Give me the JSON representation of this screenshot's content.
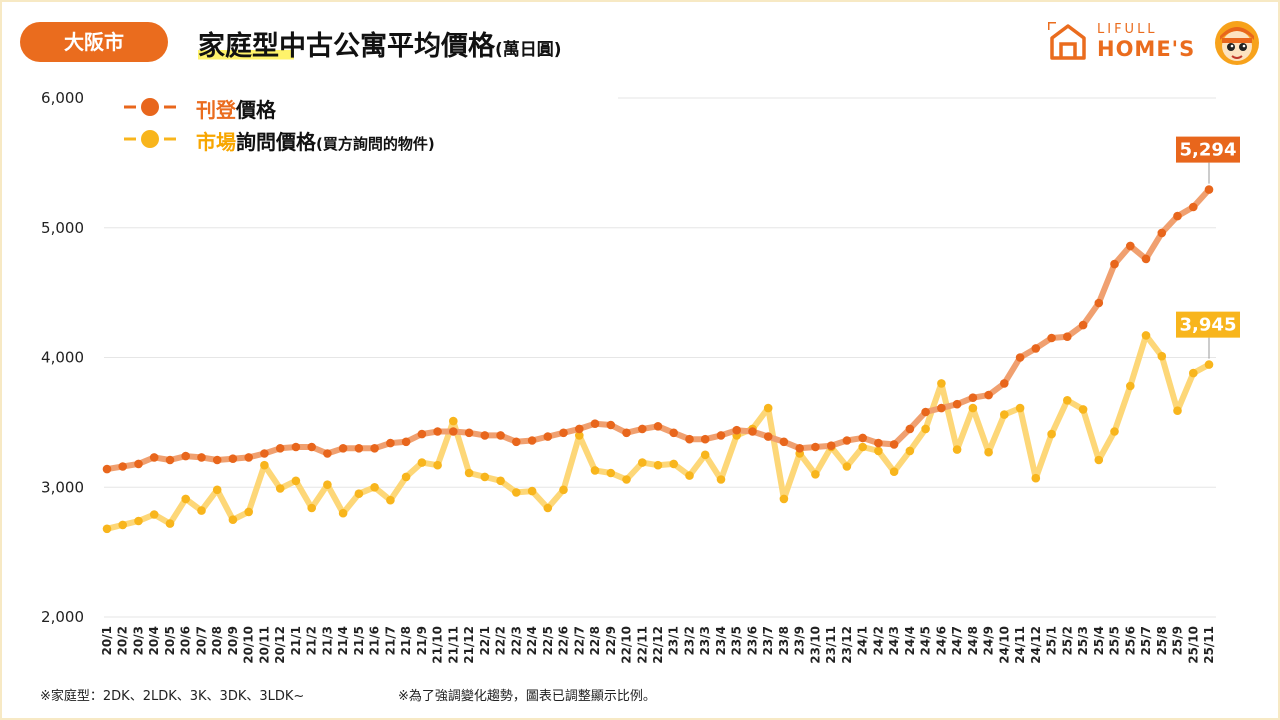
{
  "header": {
    "region": "大阪市",
    "title": "家庭型中古公寓平均價格",
    "title_unit": "(萬日圓)"
  },
  "logo": {
    "line1": "LIFULL",
    "line2": "HOME'S"
  },
  "legend": {
    "listing": {
      "hl": "刊登",
      "rest": "價格"
    },
    "inquiry": {
      "hl": "市場",
      "rest": "詢問價格",
      "small": "(買方詢問的物件)"
    }
  },
  "footnotes": {
    "left": "※家庭型：2DK、2LDK、3K、3DK、3LDK~",
    "right": "※為了強調變化趨勢，圖表已調整顯示比例。"
  },
  "colors": {
    "accent": "#ea6c1e",
    "listing_line": "#f0a070",
    "listing_dot": "#e8661c",
    "inquiry_line": "#fdd778",
    "inquiry_dot": "#f8b51c",
    "grid": "#e6e6e6",
    "label_listing_bg": "#e8661c",
    "label_inquiry_bg": "#f8b51c"
  },
  "chart_data": {
    "type": "line",
    "ylim": [
      2000,
      6000
    ],
    "yticks": [
      "2,000",
      "3,000",
      "4,000",
      "5,000",
      "6,000"
    ],
    "ytick_values": [
      2000,
      3000,
      4000,
      5000,
      6000
    ],
    "grid": true,
    "legend_position": "top-left",
    "x": [
      "20/1",
      "20/2",
      "20/3",
      "20/4",
      "20/5",
      "20/6",
      "20/7",
      "20/8",
      "20/9",
      "20/10",
      "20/11",
      "20/12",
      "21/1",
      "21/2",
      "21/3",
      "21/4",
      "21/5",
      "21/6",
      "21/7",
      "21/8",
      "21/9",
      "21/10",
      "21/11",
      "21/12",
      "22/1",
      "22/2",
      "22/3",
      "22/4",
      "22/5",
      "22/6",
      "22/7",
      "22/8",
      "22/9",
      "22/10",
      "22/11",
      "22/12",
      "23/1",
      "23/2",
      "23/3",
      "23/4",
      "23/5",
      "23/6",
      "23/7",
      "23/8",
      "23/9",
      "23/10",
      "23/11",
      "23/12",
      "24/1",
      "24/2",
      "24/3",
      "24/4",
      "24/5",
      "24/6",
      "24/7",
      "24/8",
      "24/9",
      "24/10",
      "24/11",
      "24/12",
      "25/1",
      "25/2",
      "25/3",
      "25/4",
      "25/5",
      "25/6",
      "25/7",
      "25/8",
      "25/9",
      "25/10",
      "25/11"
    ],
    "series": [
      {
        "name": "刊登價格",
        "values": [
          3140,
          3160,
          3180,
          3230,
          3210,
          3240,
          3230,
          3210,
          3220,
          3230,
          3260,
          3300,
          3310,
          3310,
          3260,
          3300,
          3300,
          3300,
          3340,
          3350,
          3410,
          3430,
          3430,
          3420,
          3400,
          3400,
          3350,
          3360,
          3390,
          3420,
          3450,
          3490,
          3480,
          3420,
          3450,
          3470,
          3420,
          3370,
          3370,
          3400,
          3440,
          3430,
          3390,
          3350,
          3300,
          3310,
          3320,
          3360,
          3380,
          3340,
          3330,
          3450,
          3580,
          3610,
          3640,
          3690,
          3710,
          3800,
          4000,
          4070,
          4150,
          4160,
          4250,
          4420,
          4720,
          4860,
          4760,
          4960,
          5090,
          5160,
          5294
        ],
        "end_label": "5,294"
      },
      {
        "name": "市場詢問價格",
        "values": [
          2680,
          2710,
          2740,
          2790,
          2720,
          2910,
          2820,
          2980,
          2750,
          2810,
          3170,
          2990,
          3050,
          2840,
          3020,
          2800,
          2950,
          3000,
          2900,
          3080,
          3190,
          3170,
          3510,
          3110,
          3080,
          3050,
          2960,
          2970,
          2840,
          2980,
          3400,
          3130,
          3110,
          3060,
          3190,
          3170,
          3180,
          3090,
          3250,
          3060,
          3400,
          3450,
          3610,
          2910,
          3260,
          3100,
          3310,
          3160,
          3310,
          3280,
          3120,
          3280,
          3450,
          3800,
          3290,
          3610,
          3270,
          3560,
          3610,
          3070,
          3410,
          3670,
          3600,
          3210,
          3430,
          3780,
          4170,
          4010,
          3590,
          3880,
          3945
        ],
        "end_label": "3,945"
      }
    ]
  }
}
